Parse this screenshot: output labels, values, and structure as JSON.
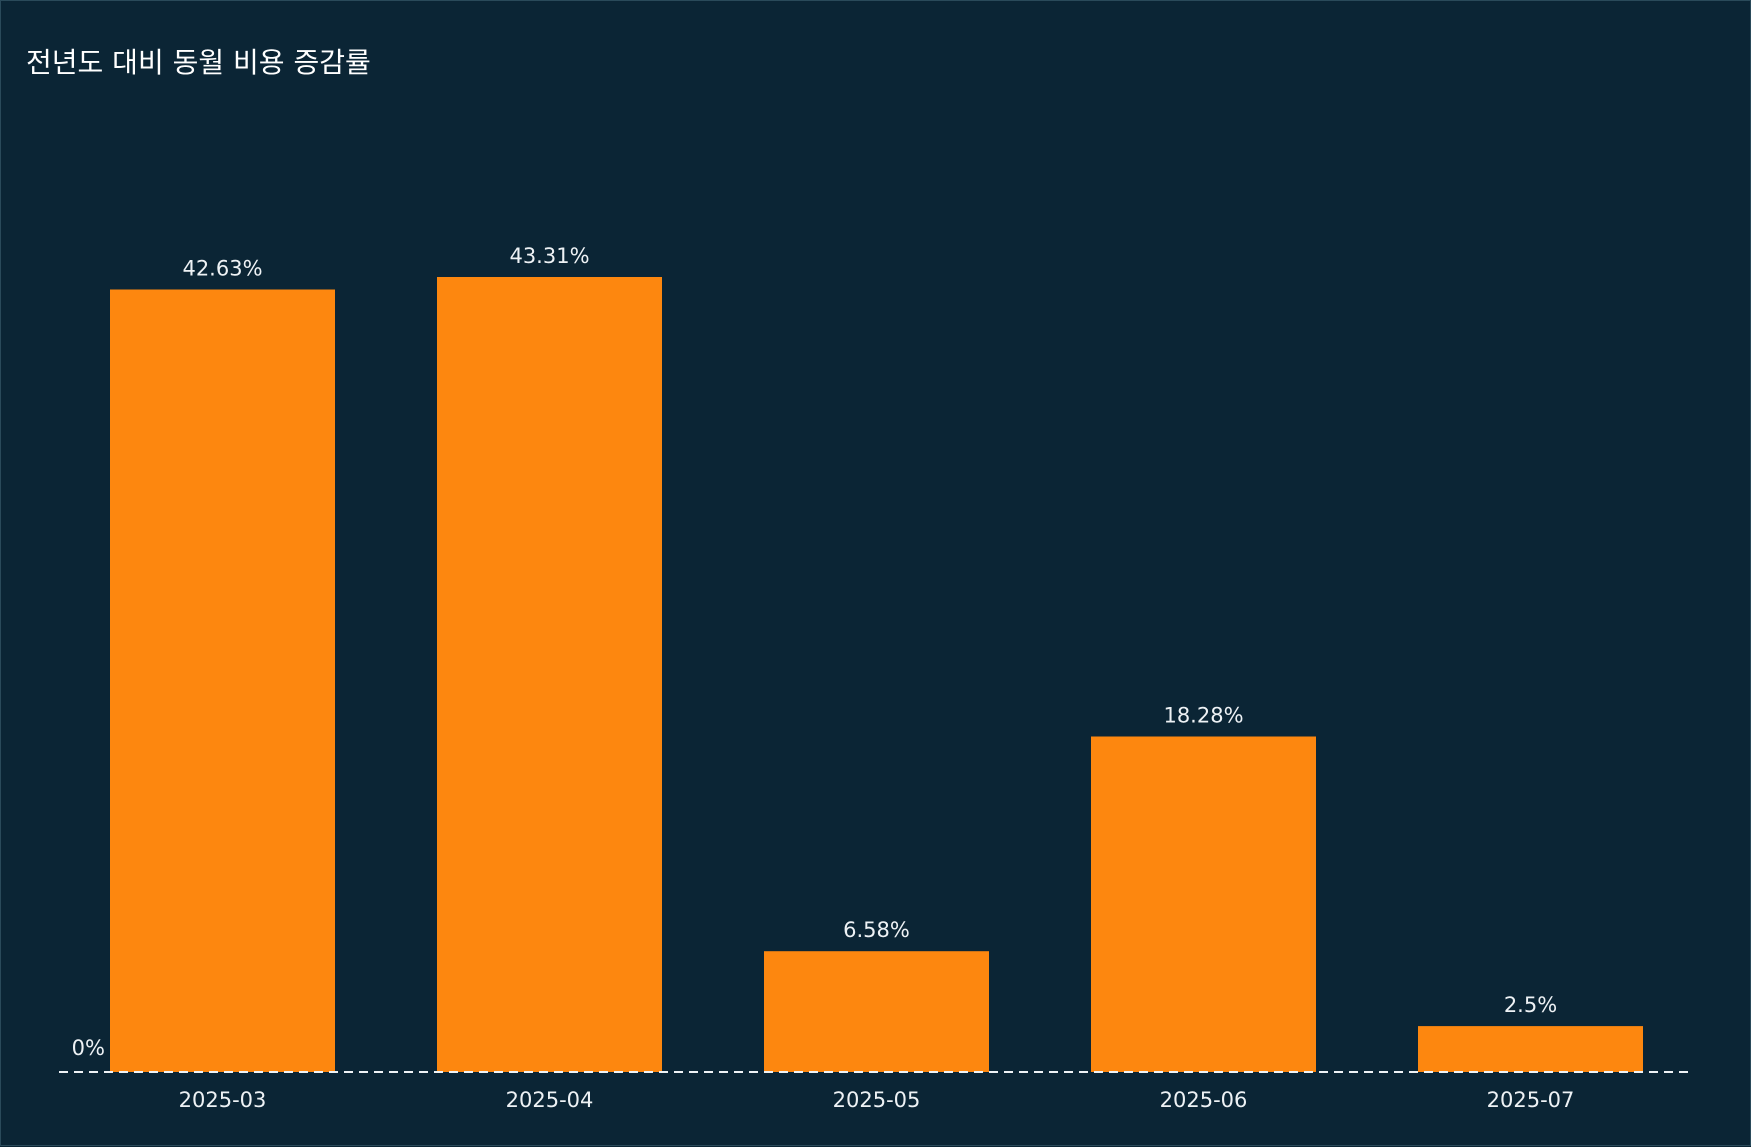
{
  "chart_data": {
    "type": "bar",
    "title": "전년도 대비 동월 비용 증감률",
    "categories": [
      "2025-03",
      "2025-04",
      "2025-05",
      "2025-06",
      "2025-07"
    ],
    "values": [
      42.63,
      43.31,
      6.58,
      18.28,
      2.5
    ],
    "value_labels": [
      "42.63%",
      "43.31%",
      "6.58%",
      "18.28%",
      "2.5%"
    ],
    "zero_label": "0%",
    "xlabel": "",
    "ylabel": "",
    "ylim": [
      0,
      50
    ],
    "grid": false,
    "bar_color": "#fd870f",
    "background_color": "#0b2535"
  }
}
